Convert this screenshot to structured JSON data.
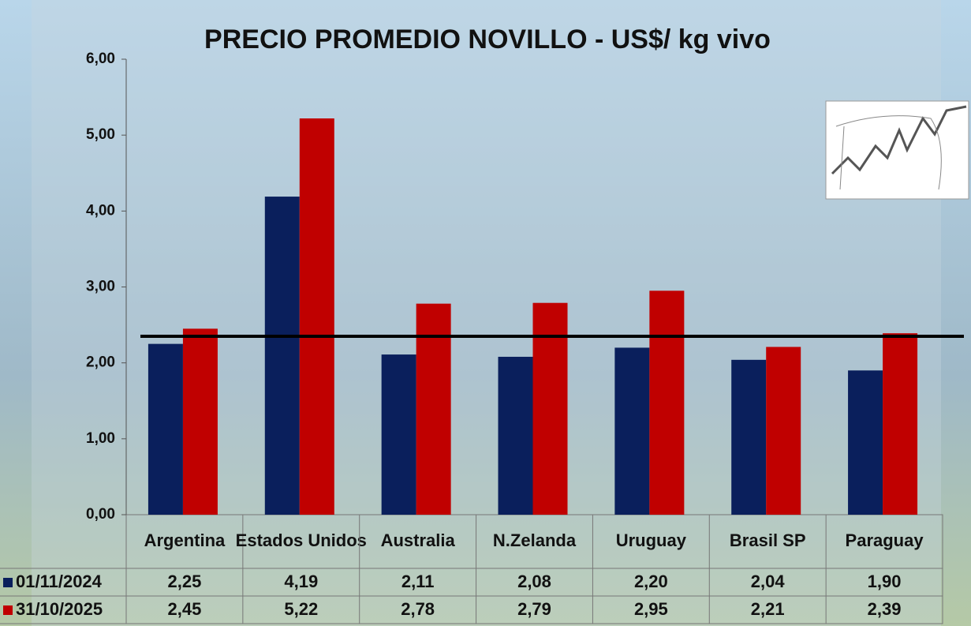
{
  "chart_data": {
    "type": "bar",
    "title": "PRECIO PROMEDIO NOVILLO  - US$/ kg vivo",
    "categories": [
      "Argentina",
      "Estados Unidos",
      "Australia",
      "N.Zelanda",
      "Uruguay",
      "Brasil SP",
      "Paraguay"
    ],
    "series": [
      {
        "name": "01/11/2024",
        "color": "#0a1f5c",
        "values": [
          2.25,
          4.19,
          2.11,
          2.08,
          2.2,
          2.04,
          1.9
        ],
        "value_labels": [
          "2,25",
          "4,19",
          "2,11",
          "2,08",
          "2,20",
          "2,04",
          "1,90"
        ]
      },
      {
        "name": "31/10/2025",
        "color": "#c00000",
        "values": [
          2.45,
          5.22,
          2.78,
          2.79,
          2.95,
          2.21,
          2.39
        ],
        "value_labels": [
          "2,45",
          "5,22",
          "2,78",
          "2,79",
          "2,95",
          "2,21",
          "2,39"
        ]
      }
    ],
    "reference_line": 2.35,
    "ylim": [
      0,
      6
    ],
    "yticks": [
      {
        "value": 0,
        "label": "0,00"
      },
      {
        "value": 1,
        "label": "1,00"
      },
      {
        "value": 2,
        "label": "2,00"
      },
      {
        "value": 3,
        "label": "3,00"
      },
      {
        "value": 4,
        "label": "4,00"
      },
      {
        "value": 5,
        "label": "5,00"
      },
      {
        "value": 6,
        "label": "6,00"
      }
    ]
  }
}
